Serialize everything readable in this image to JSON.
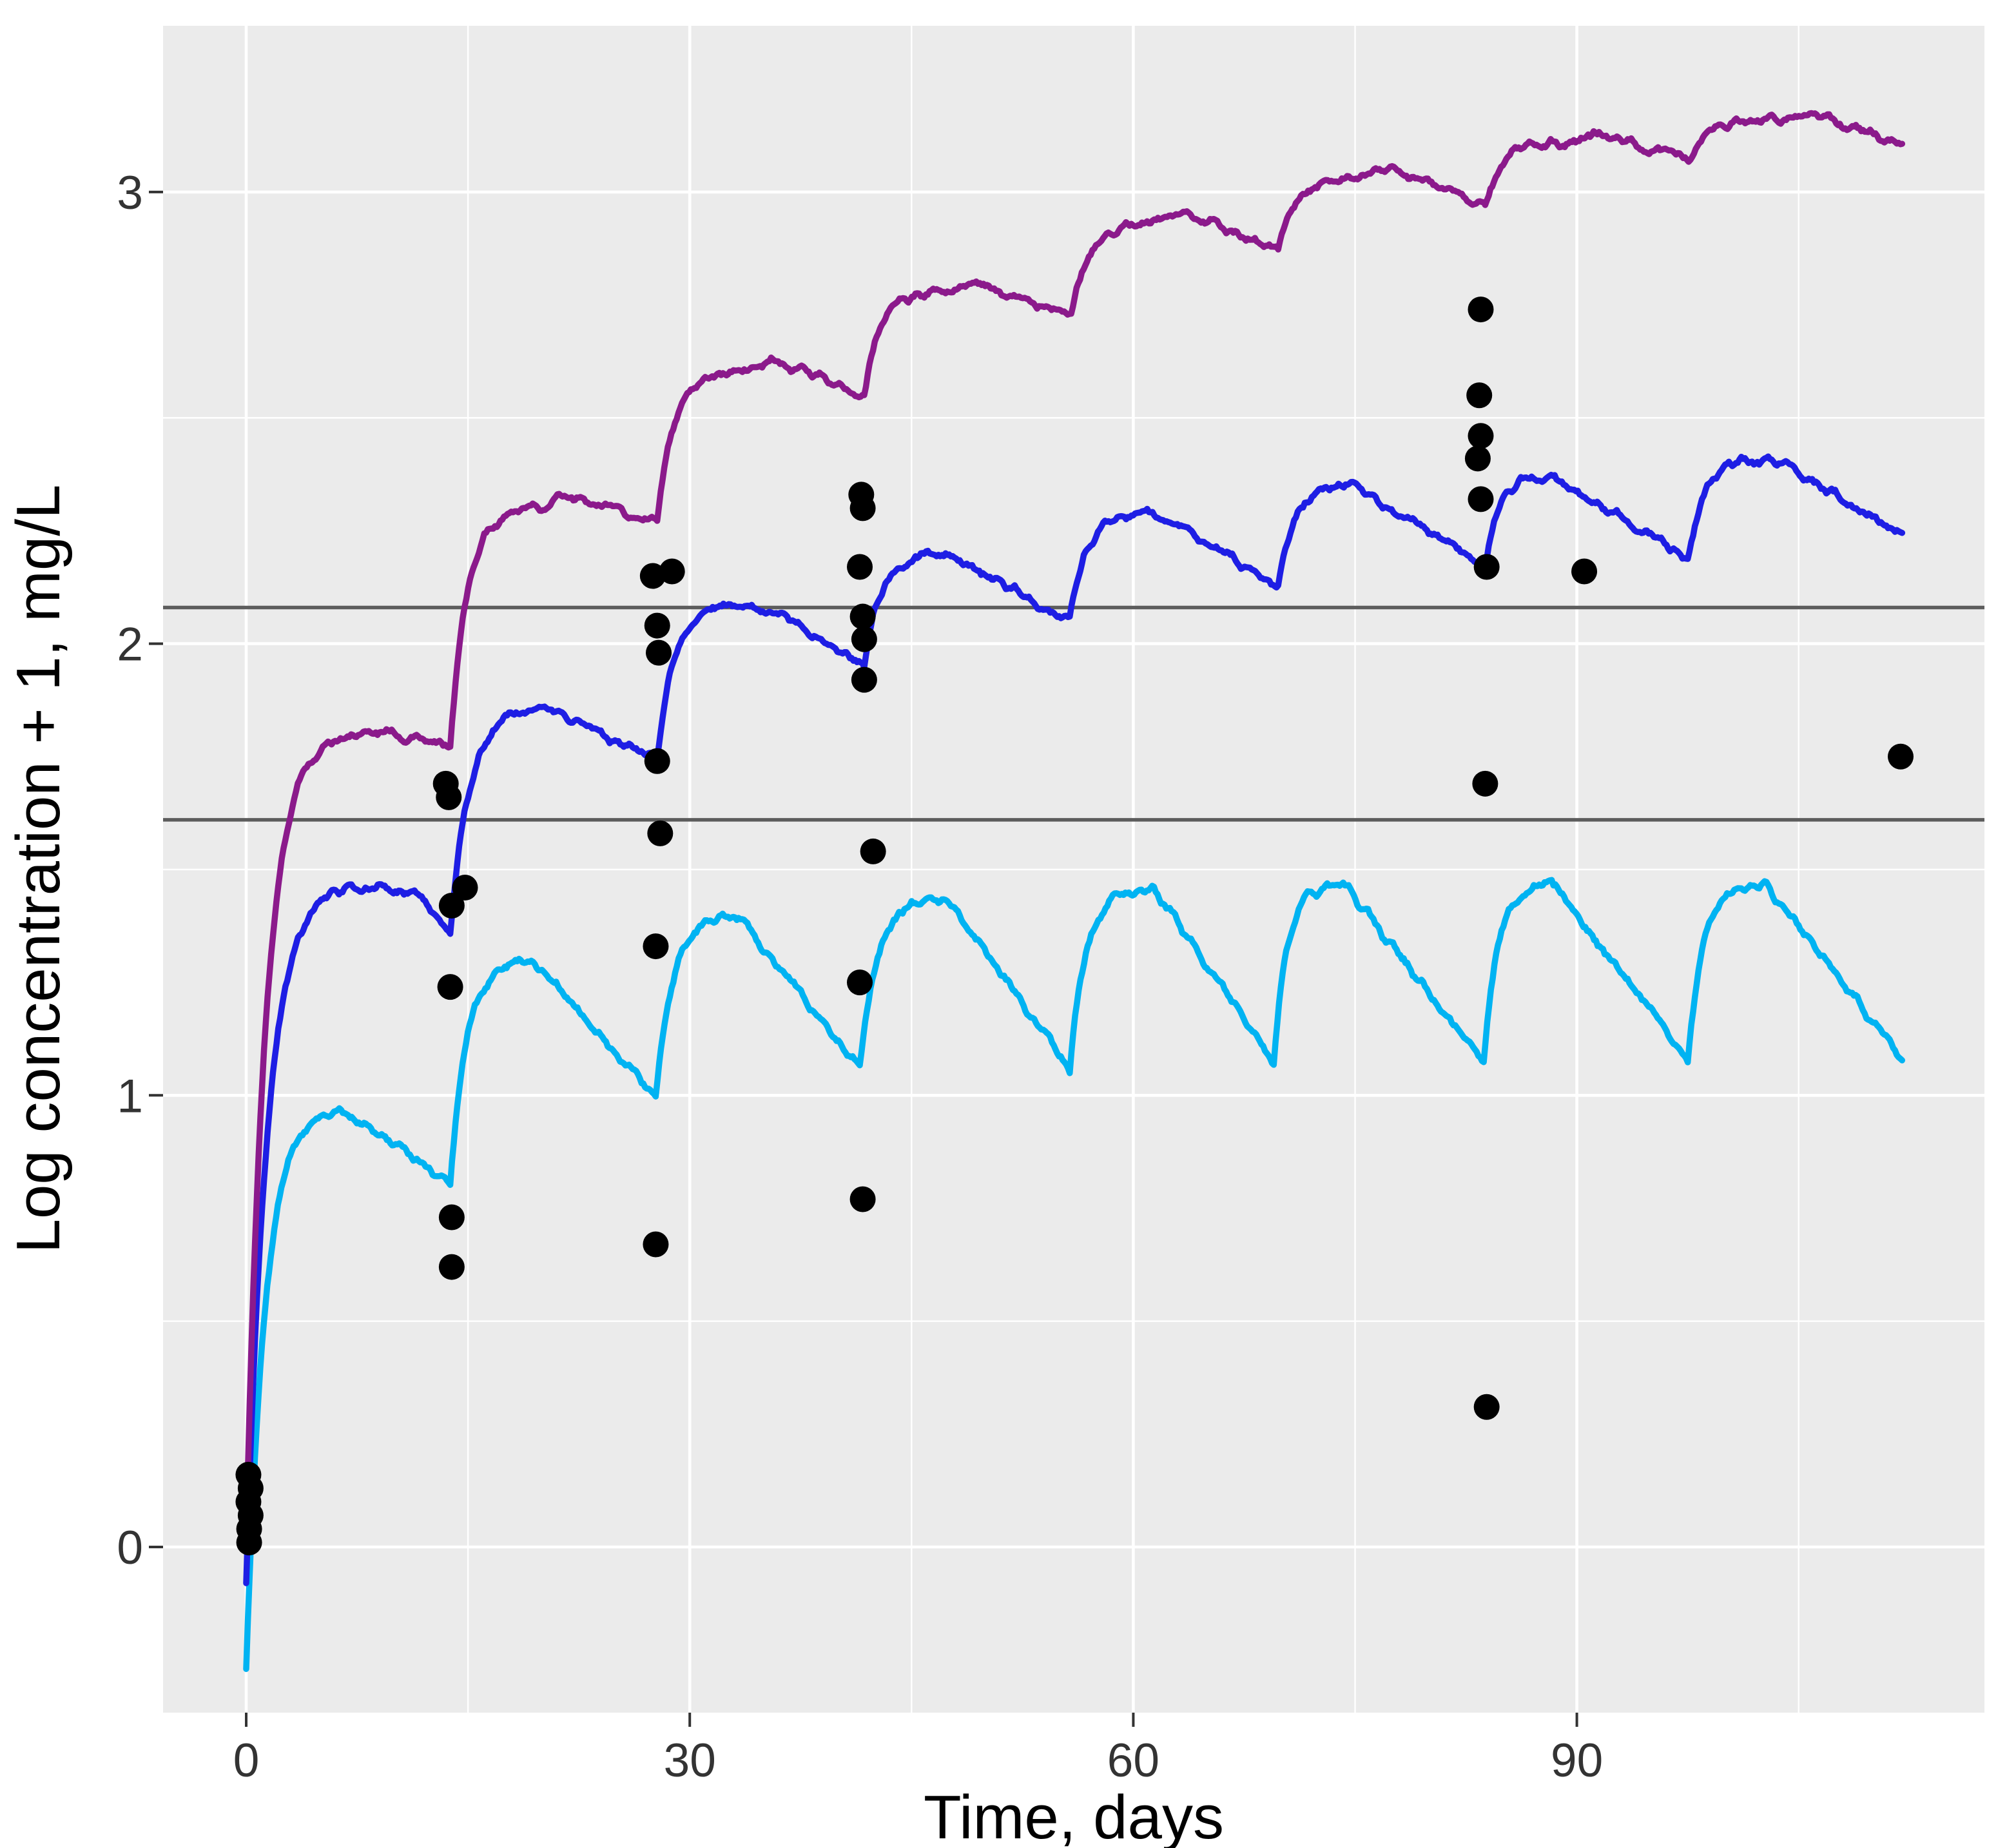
{
  "chart_data": {
    "type": "line",
    "title": "",
    "xlabel": "Time, days",
    "ylabel": "Log concentration + 1, mg/L",
    "x_ticks": [
      0,
      30,
      60,
      90
    ],
    "x_minor_ticks": [
      15,
      45,
      75,
      105
    ],
    "y_ticks": [
      0,
      1,
      2,
      3
    ],
    "y_minor_ticks": [
      0.5,
      1.5,
      2.5
    ],
    "x_range": [
      -5.6,
      117.6
    ],
    "y_range": [
      -0.37,
      3.37
    ],
    "grid": "on",
    "legend_position": "none",
    "panel_background": "#EBEBEB",
    "major_grid_color": "#FFFFFF",
    "minor_grid_color": "#FFFFFF",
    "tick_label_color": "#333333",
    "reference_lines": [
      {
        "y": 2.08,
        "color": "#5C5C5C"
      },
      {
        "y": 1.61,
        "color": "#5C5C5C"
      }
    ],
    "series": [
      {
        "name": "purple-curve-high",
        "color": "#8B1A8B",
        "dose_interval_days": 14,
        "anchors": [
          [
            0,
            0.02,
            "r"
          ],
          [
            6.5,
            1.79,
            "l"
          ],
          [
            9,
            1.81,
            "l"
          ],
          [
            13.8,
            1.77,
            "r"
          ],
          [
            19.5,
            2.3,
            "l"
          ],
          [
            22,
            2.33,
            "l"
          ],
          [
            27.8,
            2.27,
            "r"
          ],
          [
            33.2,
            2.6,
            "l"
          ],
          [
            35.5,
            2.63,
            "l"
          ],
          [
            41.8,
            2.55,
            "r"
          ],
          [
            47.3,
            2.78,
            "l"
          ],
          [
            49.5,
            2.8,
            "l"
          ],
          [
            55.8,
            2.72,
            "r"
          ],
          [
            61.3,
            2.93,
            "l"
          ],
          [
            63.5,
            2.95,
            "l"
          ],
          [
            69.8,
            2.87,
            "r"
          ],
          [
            75.3,
            3.03,
            "l"
          ],
          [
            77.5,
            3.05,
            "l"
          ],
          [
            83.8,
            2.97,
            "r"
          ],
          [
            89.3,
            3.11,
            "l"
          ],
          [
            91.5,
            3.13,
            "l"
          ],
          [
            97.8,
            3.07,
            "r"
          ],
          [
            103.3,
            3.16,
            "l"
          ],
          [
            105.5,
            3.17,
            "l"
          ],
          [
            112,
            3.11,
            "e"
          ]
        ]
      },
      {
        "name": "blue-curve-mid",
        "color": "#1E1EE4",
        "dose_interval_days": 14,
        "anchors": [
          [
            0,
            -0.08,
            "r"
          ],
          [
            7,
            1.46,
            "l"
          ],
          [
            11.5,
            1.45,
            "l"
          ],
          [
            13.8,
            1.36,
            "r"
          ],
          [
            20.3,
            1.86,
            "l"
          ],
          [
            27.8,
            1.74,
            "r"
          ],
          [
            33,
            2.08,
            "l"
          ],
          [
            35.5,
            2.08,
            "l"
          ],
          [
            41.8,
            1.95,
            "r"
          ],
          [
            47.3,
            2.2,
            "l"
          ],
          [
            55.7,
            2.05,
            "r"
          ],
          [
            61.3,
            2.29,
            "l"
          ],
          [
            69.8,
            2.13,
            "r"
          ],
          [
            75.2,
            2.35,
            "l"
          ],
          [
            83.8,
            2.17,
            "r"
          ],
          [
            88.5,
            2.37,
            "l"
          ],
          [
            97.5,
            2.19,
            "r"
          ],
          [
            103.3,
            2.41,
            "l"
          ],
          [
            112,
            2.24,
            "e"
          ]
        ]
      },
      {
        "name": "cyan-curve-low",
        "color": "#00B3F2",
        "dose_interval_days": 14,
        "anchors": [
          [
            0,
            -0.27,
            "r"
          ],
          [
            6.3,
            0.97,
            "l"
          ],
          [
            13.8,
            0.81,
            "r"
          ],
          [
            19.4,
            1.3,
            "l"
          ],
          [
            27.7,
            0.99,
            "r"
          ],
          [
            33.3,
            1.4,
            "l"
          ],
          [
            41.5,
            1.06,
            "r"
          ],
          [
            47.3,
            1.44,
            "l"
          ],
          [
            55.7,
            1.06,
            "r"
          ],
          [
            61.4,
            1.46,
            "l"
          ],
          [
            69.5,
            1.07,
            "r"
          ],
          [
            74.2,
            1.47,
            "l"
          ],
          [
            83.7,
            1.07,
            "r"
          ],
          [
            88.3,
            1.47,
            "l"
          ],
          [
            97.5,
            1.08,
            "r"
          ],
          [
            102.7,
            1.47,
            "l"
          ],
          [
            112,
            1.08,
            "e"
          ]
        ]
      }
    ],
    "points": {
      "name": "observed-concentrations",
      "color": "#000000",
      "xy": [
        [
          0.15,
          0.16
        ],
        [
          0.3,
          0.13
        ],
        [
          0.15,
          0.1
        ],
        [
          0.3,
          0.07
        ],
        [
          0.2,
          0.04
        ],
        [
          0.2,
          0.01
        ],
        [
          13.5,
          1.69
        ],
        [
          13.7,
          1.66
        ],
        [
          14.8,
          1.46
        ],
        [
          13.9,
          1.42
        ],
        [
          13.8,
          1.24
        ],
        [
          13.9,
          0.73
        ],
        [
          13.9,
          0.62
        ],
        [
          27.5,
          2.15
        ],
        [
          28.8,
          2.16
        ],
        [
          27.8,
          2.04
        ],
        [
          27.9,
          1.98
        ],
        [
          27.8,
          1.74
        ],
        [
          28.0,
          1.58
        ],
        [
          27.7,
          1.33
        ],
        [
          27.7,
          0.67
        ],
        [
          41.6,
          2.33
        ],
        [
          41.7,
          2.3
        ],
        [
          41.5,
          2.17
        ],
        [
          41.7,
          2.06
        ],
        [
          41.8,
          2.01
        ],
        [
          41.8,
          1.92
        ],
        [
          42.4,
          1.54
        ],
        [
          41.5,
          1.25
        ],
        [
          41.7,
          0.77
        ],
        [
          83.5,
          2.74
        ],
        [
          83.4,
          2.55
        ],
        [
          83.5,
          2.46
        ],
        [
          83.3,
          2.41
        ],
        [
          83.5,
          2.32
        ],
        [
          83.9,
          2.17
        ],
        [
          83.8,
          1.69
        ],
        [
          83.9,
          0.31
        ],
        [
          90.5,
          2.16
        ],
        [
          111.9,
          1.75
        ]
      ]
    }
  }
}
